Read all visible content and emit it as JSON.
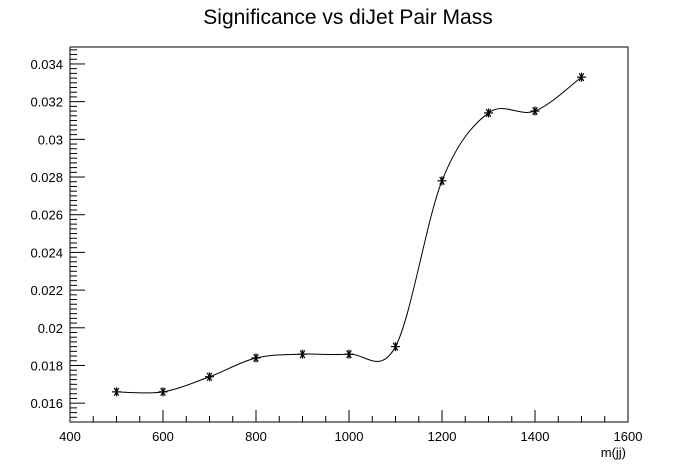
{
  "chart_data": {
    "type": "line",
    "title": "Significance vs diJet Pair Mass",
    "xlabel": "m(jj)",
    "ylabel": "",
    "xlim": [
      400,
      1600
    ],
    "ylim": [
      0.015,
      0.0349
    ],
    "x_ticks": [
      400,
      600,
      800,
      1000,
      1200,
      1400,
      1600
    ],
    "y_ticks": [
      0.016,
      0.018,
      0.02,
      0.022,
      0.024,
      0.026,
      0.028,
      0.03,
      0.032,
      0.034
    ],
    "x_tick_labels": [
      "400",
      "600",
      "800",
      "1000",
      "1200",
      "1400",
      "1600"
    ],
    "y_tick_labels": [
      "0.016",
      "0.018",
      "0.02",
      "0.022",
      "0.024",
      "0.026",
      "0.028",
      "0.03",
      "0.032",
      "0.034"
    ],
    "grid": false,
    "marker": "asterisk",
    "line_style": "smooth-spline",
    "line_color": "#000000",
    "series": [
      {
        "x": [
          500,
          600,
          700,
          800,
          900,
          1000,
          1100,
          1200,
          1300,
          1400,
          1500
        ],
        "values": [
          0.0166,
          0.0166,
          0.0174,
          0.0184,
          0.0186,
          0.0186,
          0.019,
          0.0278,
          0.0314,
          0.0315,
          0.0333
        ]
      }
    ]
  }
}
